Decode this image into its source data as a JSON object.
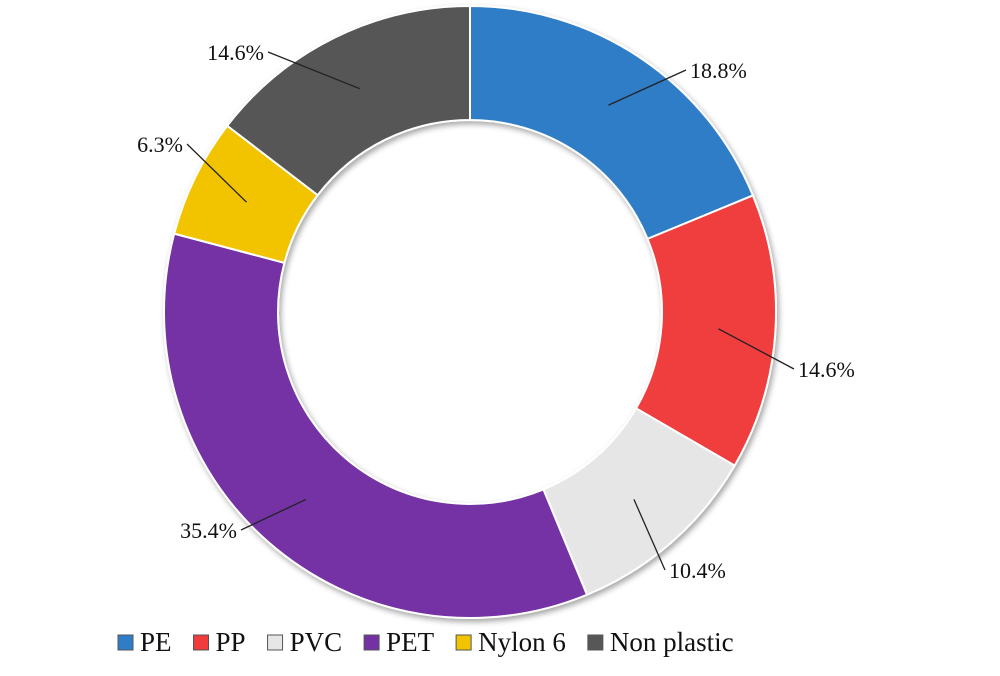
{
  "chart_data": {
    "type": "pie",
    "variant": "donut",
    "title": "",
    "categories": [
      "PE",
      "PP",
      "PVC",
      "PET",
      "Nylon 6",
      "Non plastic"
    ],
    "values": [
      18.8,
      14.6,
      10.4,
      35.4,
      6.3,
      14.6
    ],
    "value_labels": [
      "18.8%",
      "14.6%",
      "10.4%",
      "35.4%",
      "6.3%",
      "14.6%"
    ],
    "colors": [
      "#2f7dc6",
      "#f03c3c",
      "#e6e6e6",
      "#7431a4",
      "#f2c400",
      "#575757"
    ],
    "legend": {
      "position": "bottom",
      "items": [
        {
          "label": "PE",
          "color": "#2f7dc6"
        },
        {
          "label": "PP",
          "color": "#f03c3c"
        },
        {
          "label": "PVC",
          "color": "#e6e6e6"
        },
        {
          "label": "PET",
          "color": "#7431a4"
        },
        {
          "label": "Nylon 6",
          "color": "#f2c400"
        },
        {
          "label": "Non plastic",
          "color": "#575757"
        }
      ]
    }
  }
}
